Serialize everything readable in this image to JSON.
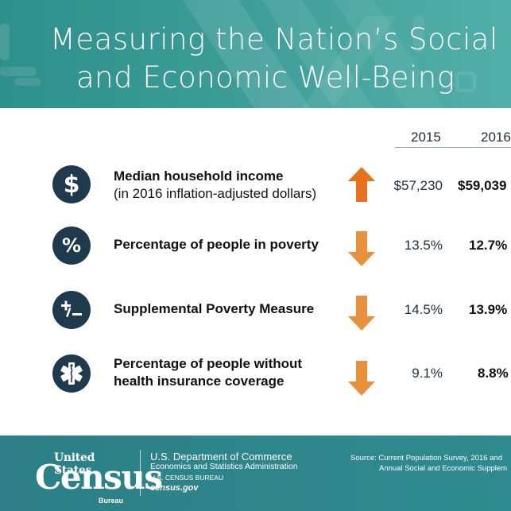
{
  "banner": {
    "title_line1": "Measuring the Nation’s Social",
    "title_line2": "and Economic Well-Being"
  },
  "columns": {
    "year1": "2015",
    "year2": "2016"
  },
  "rows": [
    {
      "icon": "dollar-icon",
      "icon_glyph": "$",
      "label": "Median household income",
      "sublabel": "(in 2016 inflation-adjusted dollars)",
      "direction": "up",
      "v2015": "$57,230",
      "v2016": "$59,039"
    },
    {
      "icon": "percent-icon",
      "icon_glyph": "%",
      "label": "Percentage of people in poverty",
      "sublabel": "",
      "direction": "down",
      "v2015": "13.5%",
      "v2016": "12.7%"
    },
    {
      "icon": "plus-minus-icon",
      "icon_glyph": "+-",
      "label": "Supplemental Poverty Measure",
      "sublabel": "",
      "direction": "down",
      "v2015": "14.5%",
      "v2016": "13.9%"
    },
    {
      "icon": "medical-star-icon",
      "icon_glyph": "",
      "label": "Percentage of people without",
      "sublabel": "health insurance coverage",
      "direction": "down",
      "v2015": "9.1%",
      "v2016": "8.8%"
    }
  ],
  "colors": {
    "banner": "#3a9a96",
    "icon_circle": "#1f3a4d",
    "arrow_up": "#e8711c",
    "arrow_down": "#e8913a",
    "footer": "#2c7f86"
  },
  "footer": {
    "logo_top": "United States",
    "logo_main": "Census",
    "logo_bottom": "Bureau",
    "dept_line1": "U.S. Department of Commerce",
    "dept_line2": "Economics and Statistics Administration",
    "dept_line3": "U.S. CENSUS BUREAU",
    "dept_line4": "census.gov",
    "source_line1": "Source: Current Population Survey, 2016 and",
    "source_line2": "Annual Social and Economic Supplem"
  }
}
